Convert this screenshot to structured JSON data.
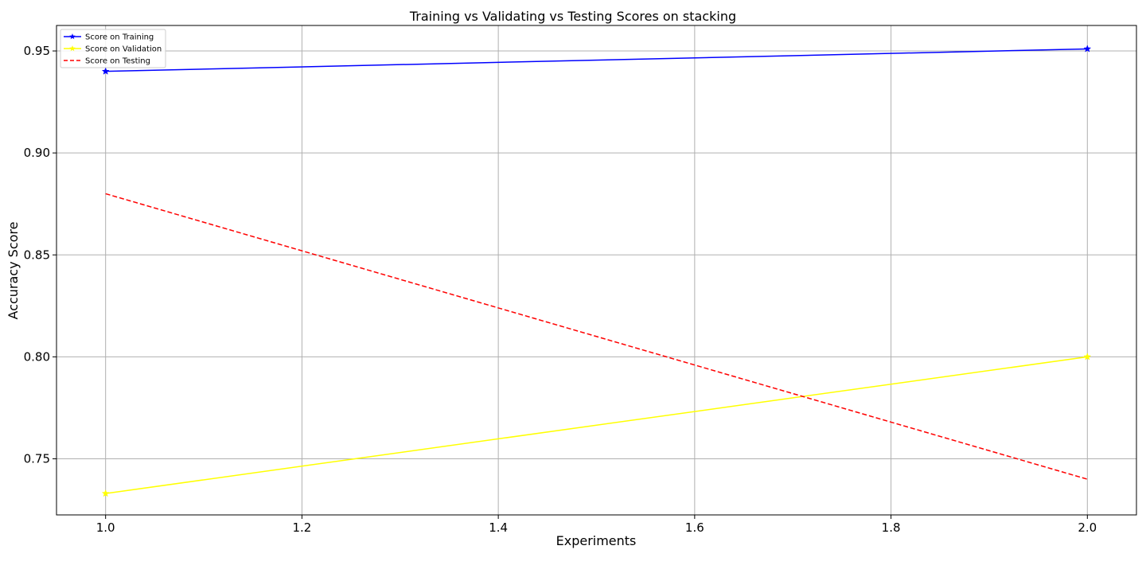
{
  "chart_data": {
    "type": "line",
    "title": "Training vs Validating vs Testing Scores on stacking",
    "xlabel": "Experiments",
    "ylabel": "Accuracy Score",
    "xlim": [
      0.95,
      2.05
    ],
    "ylim": [
      0.7225,
      0.9625
    ],
    "x_ticks": [
      1.0,
      1.2,
      1.4,
      1.6,
      1.8,
      2.0
    ],
    "x_tick_labels": [
      "1.0",
      "1.2",
      "1.4",
      "1.6",
      "1.8",
      "2.0"
    ],
    "y_ticks": [
      0.75,
      0.8,
      0.85,
      0.9,
      0.95
    ],
    "y_tick_labels": [
      "0.75",
      "0.80",
      "0.85",
      "0.90",
      "0.95"
    ],
    "grid": true,
    "legend_position": "top-left",
    "x": [
      1.0,
      2.0
    ],
    "series": [
      {
        "name": "Score on Training",
        "values": [
          0.94,
          0.951
        ],
        "color": "#0000ff",
        "style": "solid",
        "marker": "star"
      },
      {
        "name": "Score on Validation",
        "values": [
          0.733,
          0.8
        ],
        "color": "#ffff00",
        "style": "solid",
        "marker": "star"
      },
      {
        "name": "Score on Testing",
        "values": [
          0.88,
          0.74
        ],
        "color": "#ff0000",
        "style": "dashed",
        "marker": "none"
      }
    ]
  }
}
